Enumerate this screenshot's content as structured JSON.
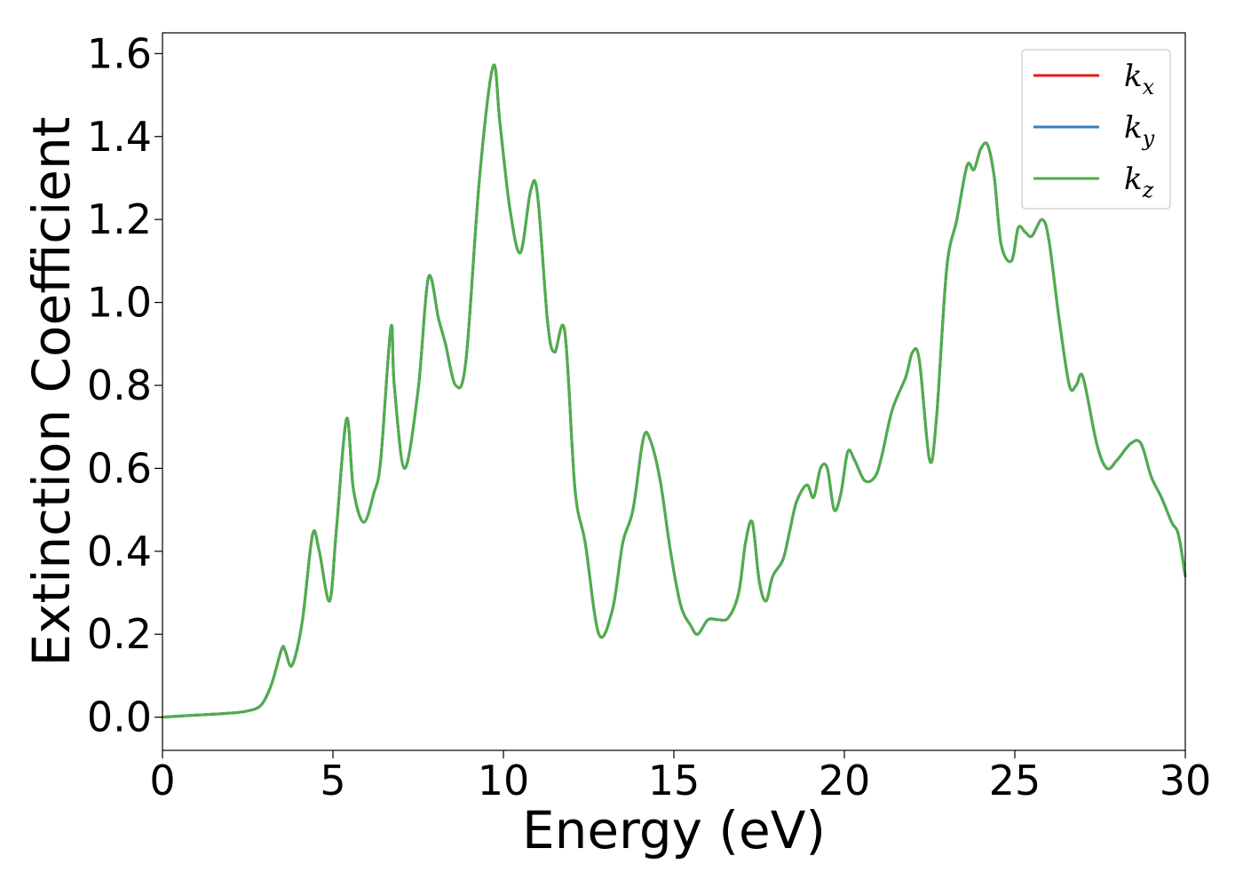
{
  "chart_data": {
    "type": "line",
    "title": "",
    "xlabel": "Energy (eV)",
    "ylabel": "Extinction Coefficient",
    "xlim": [
      0,
      30
    ],
    "ylim": [
      -0.08,
      1.65
    ],
    "x_ticks": [
      0,
      5,
      10,
      15,
      20,
      25,
      30
    ],
    "x_tick_labels": [
      "0",
      "5",
      "10",
      "15",
      "20",
      "25",
      "30"
    ],
    "y_ticks": [
      0.0,
      0.2,
      0.4,
      0.6,
      0.8,
      1.0,
      1.2,
      1.4,
      1.6
    ],
    "y_tick_labels": [
      "0.0",
      "0.2",
      "0.4",
      "0.6",
      "0.8",
      "1.0",
      "1.2",
      "1.4",
      "1.6"
    ],
    "grid": false,
    "legend_position": "top-right",
    "series": [
      {
        "name": "k_x",
        "legend_base": "k",
        "legend_sub": "x",
        "color": "#e41a1c",
        "x": [
          0,
          1,
          2,
          2.5,
          2.9,
          3.2,
          3.5,
          3.6,
          3.8,
          4.1,
          4.4,
          4.6,
          4.9,
          5.1,
          5.4,
          5.6,
          5.9,
          6.2,
          6.4,
          6.7,
          6.8,
          7.1,
          7.5,
          7.8,
          8.1,
          8.3,
          8.6,
          8.9,
          9.3,
          9.7,
          9.9,
          10.2,
          10.5,
          10.8,
          11.0,
          11.3,
          11.5,
          11.8,
          12.1,
          12.4,
          12.8,
          13.2,
          13.5,
          13.8,
          14.1,
          14.3,
          14.6,
          14.9,
          15.2,
          15.5,
          15.7,
          16.0,
          16.3,
          16.6,
          16.9,
          17.1,
          17.3,
          17.5,
          17.7,
          17.9,
          18.2,
          18.4,
          18.6,
          18.9,
          19.1,
          19.3,
          19.5,
          19.7,
          19.9,
          20.1,
          20.3,
          20.6,
          20.9,
          21.1,
          21.4,
          21.8,
          22.0,
          22.2,
          22.5,
          22.7,
          23.0,
          23.3,
          23.6,
          23.8,
          24.0,
          24.2,
          24.4,
          24.6,
          24.9,
          25.1,
          25.3,
          25.5,
          25.8,
          26.0,
          26.3,
          26.6,
          26.8,
          27.0,
          27.4,
          27.7,
          28.0,
          28.4,
          28.7,
          29.0,
          29.3,
          29.6,
          29.8,
          30.0
        ],
        "y": [
          0.0,
          0.005,
          0.01,
          0.015,
          0.03,
          0.08,
          0.165,
          0.16,
          0.125,
          0.23,
          0.44,
          0.4,
          0.28,
          0.45,
          0.72,
          0.55,
          0.47,
          0.54,
          0.62,
          0.94,
          0.8,
          0.6,
          0.79,
          1.06,
          0.96,
          0.9,
          0.8,
          0.86,
          1.3,
          1.57,
          1.43,
          1.22,
          1.12,
          1.27,
          1.26,
          0.95,
          0.88,
          0.93,
          0.55,
          0.42,
          0.2,
          0.26,
          0.42,
          0.5,
          0.67,
          0.67,
          0.57,
          0.4,
          0.27,
          0.22,
          0.2,
          0.235,
          0.235,
          0.24,
          0.3,
          0.42,
          0.47,
          0.33,
          0.28,
          0.34,
          0.38,
          0.45,
          0.52,
          0.56,
          0.53,
          0.6,
          0.6,
          0.5,
          0.54,
          0.64,
          0.62,
          0.57,
          0.58,
          0.63,
          0.74,
          0.82,
          0.88,
          0.86,
          0.62,
          0.72,
          1.08,
          1.2,
          1.33,
          1.32,
          1.37,
          1.38,
          1.3,
          1.14,
          1.1,
          1.18,
          1.17,
          1.16,
          1.2,
          1.15,
          0.96,
          0.8,
          0.8,
          0.82,
          0.66,
          0.6,
          0.62,
          0.66,
          0.66,
          0.58,
          0.53,
          0.47,
          0.44,
          0.34
        ]
      },
      {
        "name": "k_y",
        "legend_base": "k",
        "legend_sub": "y",
        "color": "#377eb8",
        "x": [
          0,
          1,
          2,
          2.5,
          2.9,
          3.2,
          3.5,
          3.6,
          3.8,
          4.1,
          4.4,
          4.6,
          4.9,
          5.1,
          5.4,
          5.6,
          5.9,
          6.2,
          6.4,
          6.7,
          6.8,
          7.1,
          7.5,
          7.8,
          8.1,
          8.3,
          8.6,
          8.9,
          9.3,
          9.7,
          9.9,
          10.2,
          10.5,
          10.8,
          11.0,
          11.3,
          11.5,
          11.8,
          12.1,
          12.4,
          12.8,
          13.2,
          13.5,
          13.8,
          14.1,
          14.3,
          14.6,
          14.9,
          15.2,
          15.5,
          15.7,
          16.0,
          16.3,
          16.6,
          16.9,
          17.1,
          17.3,
          17.5,
          17.7,
          17.9,
          18.2,
          18.4,
          18.6,
          18.9,
          19.1,
          19.3,
          19.5,
          19.7,
          19.9,
          20.1,
          20.3,
          20.6,
          20.9,
          21.1,
          21.4,
          21.8,
          22.0,
          22.2,
          22.5,
          22.7,
          23.0,
          23.3,
          23.6,
          23.8,
          24.0,
          24.2,
          24.4,
          24.6,
          24.9,
          25.1,
          25.3,
          25.5,
          25.8,
          26.0,
          26.3,
          26.6,
          26.8,
          27.0,
          27.4,
          27.7,
          28.0,
          28.4,
          28.7,
          29.0,
          29.3,
          29.6,
          29.8,
          30.0
        ],
        "y": [
          0.0,
          0.005,
          0.01,
          0.015,
          0.03,
          0.08,
          0.165,
          0.16,
          0.125,
          0.23,
          0.44,
          0.4,
          0.28,
          0.45,
          0.72,
          0.55,
          0.47,
          0.54,
          0.62,
          0.94,
          0.8,
          0.6,
          0.79,
          1.06,
          0.96,
          0.9,
          0.8,
          0.86,
          1.3,
          1.57,
          1.43,
          1.22,
          1.12,
          1.27,
          1.26,
          0.95,
          0.88,
          0.93,
          0.55,
          0.42,
          0.2,
          0.26,
          0.42,
          0.5,
          0.67,
          0.67,
          0.57,
          0.4,
          0.27,
          0.22,
          0.2,
          0.235,
          0.235,
          0.24,
          0.3,
          0.42,
          0.47,
          0.33,
          0.28,
          0.34,
          0.38,
          0.45,
          0.52,
          0.56,
          0.53,
          0.6,
          0.6,
          0.5,
          0.54,
          0.64,
          0.62,
          0.57,
          0.58,
          0.63,
          0.74,
          0.82,
          0.88,
          0.86,
          0.62,
          0.72,
          1.08,
          1.2,
          1.33,
          1.32,
          1.37,
          1.38,
          1.3,
          1.14,
          1.1,
          1.18,
          1.17,
          1.16,
          1.2,
          1.15,
          0.96,
          0.8,
          0.8,
          0.82,
          0.66,
          0.6,
          0.62,
          0.66,
          0.66,
          0.58,
          0.53,
          0.47,
          0.44,
          0.34
        ]
      },
      {
        "name": "k_z",
        "legend_base": "k",
        "legend_sub": "z",
        "color": "#4daf4a",
        "x": [
          0,
          1,
          2,
          2.5,
          2.9,
          3.2,
          3.5,
          3.6,
          3.8,
          4.1,
          4.4,
          4.6,
          4.9,
          5.1,
          5.4,
          5.6,
          5.9,
          6.2,
          6.4,
          6.7,
          6.8,
          7.1,
          7.5,
          7.8,
          8.1,
          8.3,
          8.6,
          8.9,
          9.3,
          9.7,
          9.9,
          10.2,
          10.5,
          10.8,
          11.0,
          11.3,
          11.5,
          11.8,
          12.1,
          12.4,
          12.8,
          13.2,
          13.5,
          13.8,
          14.1,
          14.3,
          14.6,
          14.9,
          15.2,
          15.5,
          15.7,
          16.0,
          16.3,
          16.6,
          16.9,
          17.1,
          17.3,
          17.5,
          17.7,
          17.9,
          18.2,
          18.4,
          18.6,
          18.9,
          19.1,
          19.3,
          19.5,
          19.7,
          19.9,
          20.1,
          20.3,
          20.6,
          20.9,
          21.1,
          21.4,
          21.8,
          22.0,
          22.2,
          22.5,
          22.7,
          23.0,
          23.3,
          23.6,
          23.8,
          24.0,
          24.2,
          24.4,
          24.6,
          24.9,
          25.1,
          25.3,
          25.5,
          25.8,
          26.0,
          26.3,
          26.6,
          26.8,
          27.0,
          27.4,
          27.7,
          28.0,
          28.4,
          28.7,
          29.0,
          29.3,
          29.6,
          29.8,
          30.0
        ],
        "y": [
          0.0,
          0.005,
          0.01,
          0.015,
          0.03,
          0.08,
          0.165,
          0.16,
          0.125,
          0.23,
          0.44,
          0.4,
          0.28,
          0.45,
          0.72,
          0.55,
          0.47,
          0.54,
          0.62,
          0.94,
          0.8,
          0.6,
          0.79,
          1.06,
          0.96,
          0.9,
          0.8,
          0.86,
          1.3,
          1.57,
          1.43,
          1.22,
          1.12,
          1.27,
          1.26,
          0.95,
          0.88,
          0.93,
          0.55,
          0.42,
          0.2,
          0.26,
          0.42,
          0.5,
          0.67,
          0.67,
          0.57,
          0.4,
          0.27,
          0.22,
          0.2,
          0.235,
          0.235,
          0.24,
          0.3,
          0.42,
          0.47,
          0.33,
          0.28,
          0.34,
          0.38,
          0.45,
          0.52,
          0.56,
          0.53,
          0.6,
          0.6,
          0.5,
          0.54,
          0.64,
          0.62,
          0.57,
          0.58,
          0.63,
          0.74,
          0.82,
          0.88,
          0.86,
          0.62,
          0.72,
          1.08,
          1.2,
          1.33,
          1.32,
          1.37,
          1.38,
          1.3,
          1.14,
          1.1,
          1.18,
          1.17,
          1.16,
          1.2,
          1.15,
          0.96,
          0.8,
          0.8,
          0.82,
          0.66,
          0.6,
          0.62,
          0.66,
          0.66,
          0.58,
          0.53,
          0.47,
          0.44,
          0.34
        ]
      }
    ]
  }
}
